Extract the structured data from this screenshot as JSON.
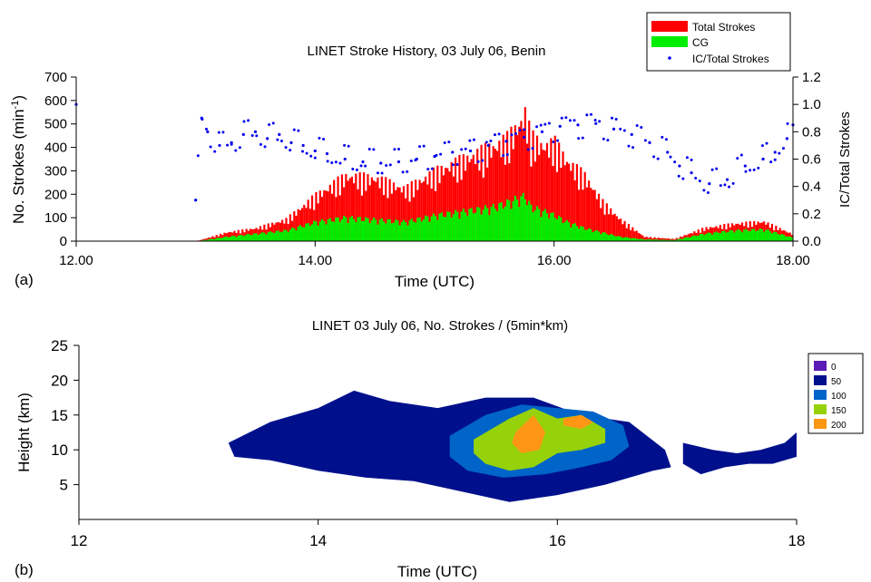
{
  "chart_data": [
    {
      "panel_label": "(a)",
      "type": "bar",
      "title": "LINET Stroke History, 03 July 06, Benin",
      "xlabel": "Time (UTC)",
      "ylabel": "No. Strokes (min",
      "ylabel_sup": "-1",
      "ylabel_end": ")",
      "y2label": "IC/Total Strokes",
      "xlim": [
        12,
        18
      ],
      "ylim": [
        0,
        700
      ],
      "y2lim": [
        0,
        1.2
      ],
      "xticks": [
        "12.00",
        "14.00",
        "16.00",
        "18.00"
      ],
      "xtick_values": [
        12,
        14,
        16,
        18
      ],
      "yticks": [
        "0",
        "100",
        "200",
        "300",
        "400",
        "500",
        "600",
        "700"
      ],
      "yticks_right": [
        "0.0",
        "0.2",
        "0.4",
        "0.6",
        "0.8",
        "1.0",
        "1.2"
      ],
      "legend": {
        "position": "top-right",
        "entries": [
          "Total Strokes",
          "CG",
          "IC/Total Strokes"
        ]
      },
      "colors": {
        "total": "#ff0000",
        "cg": "#00ee00",
        "ratio": "#0000ee"
      },
      "series": [
        {
          "name": "Total Strokes",
          "x": [
            13.0,
            13.25,
            13.5,
            13.75,
            14.0,
            14.25,
            14.5,
            14.75,
            15.0,
            15.25,
            15.5,
            15.6,
            15.7,
            15.75,
            15.8,
            15.9,
            16.0,
            16.1,
            16.25,
            16.4,
            16.55,
            16.75,
            17.0,
            17.25,
            17.5,
            17.75,
            18.0
          ],
          "values": [
            0,
            40,
            60,
            100,
            210,
            300,
            290,
            240,
            320,
            380,
            440,
            470,
            540,
            590,
            480,
            440,
            450,
            370,
            300,
            180,
            100,
            20,
            10,
            60,
            80,
            90,
            30
          ]
        },
        {
          "name": "CG",
          "x": [
            13.0,
            13.25,
            13.5,
            13.75,
            14.0,
            14.25,
            14.5,
            14.75,
            15.0,
            15.25,
            15.5,
            15.6,
            15.7,
            15.75,
            15.8,
            15.9,
            16.0,
            16.1,
            16.25,
            16.4,
            16.55,
            16.75,
            17.0,
            17.25,
            17.5,
            17.75,
            18.0
          ],
          "values": [
            0,
            20,
            35,
            50,
            90,
            110,
            100,
            90,
            120,
            140,
            160,
            180,
            200,
            210,
            160,
            140,
            120,
            90,
            60,
            40,
            20,
            8,
            5,
            35,
            50,
            55,
            15
          ]
        },
        {
          "name": "IC/Total Strokes",
          "axis": "right",
          "x": [
            12.0,
            13.0,
            13.05,
            13.1,
            13.2,
            13.3,
            13.4,
            13.5,
            13.6,
            13.7,
            13.8,
            13.9,
            14.0,
            14.1,
            14.25,
            14.4,
            14.55,
            14.7,
            14.85,
            15.0,
            15.15,
            15.3,
            15.45,
            15.6,
            15.75,
            15.9,
            16.05,
            16.2,
            16.35,
            16.5,
            16.65,
            16.8,
            16.95,
            17.05,
            17.15,
            17.3,
            17.45,
            17.6,
            17.75,
            17.85,
            17.95,
            18.0
          ],
          "values": [
            1.0,
            0.3,
            0.9,
            0.8,
            0.7,
            0.72,
            0.78,
            0.8,
            0.75,
            0.78,
            0.72,
            0.7,
            0.66,
            0.64,
            0.6,
            0.58,
            0.57,
            0.58,
            0.6,
            0.62,
            0.65,
            0.66,
            0.7,
            0.73,
            0.76,
            0.8,
            0.84,
            0.85,
            0.86,
            0.82,
            0.78,
            0.72,
            0.65,
            0.55,
            0.5,
            0.42,
            0.45,
            0.55,
            0.6,
            0.65,
            0.75,
            0.85
          ]
        }
      ]
    },
    {
      "panel_label": "(b)",
      "type": "heatmap",
      "title": "LINET 03 July 06, No. Strokes / (5min*km)",
      "xlabel": "Time (UTC)",
      "ylabel": "Height (km)",
      "xlim": [
        12,
        18
      ],
      "ylim": [
        0,
        25
      ],
      "xticks": [
        "12",
        "14",
        "16",
        "18"
      ],
      "xtick_values": [
        12,
        14,
        16,
        18
      ],
      "yticks": [
        "5",
        "10",
        "15",
        "20",
        "25"
      ],
      "ytick_values": [
        5,
        10,
        15,
        20,
        25
      ],
      "legend": {
        "position": "right",
        "levels": [
          "0",
          "50",
          "100",
          "150",
          "200"
        ],
        "colors": [
          "#5a1cb4",
          "#00108c",
          "#0064c8",
          "#96d20a",
          "#ff9614"
        ]
      },
      "regions": [
        {
          "level": "50",
          "x": [
            13.25,
            13.6,
            14.0,
            14.3,
            14.6,
            15.0,
            15.4,
            15.8,
            16.2,
            16.6,
            16.9,
            16.95,
            16.8,
            16.4,
            16.0,
            15.6,
            15.2,
            14.8,
            14.4,
            14.0,
            13.6,
            13.3
          ],
          "y": [
            11.0,
            14.0,
            16.0,
            18.5,
            17.0,
            16.0,
            17.5,
            17.5,
            15.0,
            14.0,
            10.0,
            7.5,
            7.0,
            5.0,
            3.5,
            2.5,
            4.0,
            5.5,
            6.0,
            7.0,
            8.5,
            9.0
          ]
        },
        {
          "level": "50",
          "x": [
            17.05,
            17.3,
            17.5,
            17.7,
            17.9,
            18.0,
            18.0,
            17.8,
            17.6,
            17.4,
            17.2,
            17.05
          ],
          "y": [
            11.0,
            10.0,
            9.5,
            10.0,
            11.0,
            12.5,
            9.0,
            8.0,
            8.0,
            7.5,
            6.5,
            8.0
          ]
        },
        {
          "level": "100",
          "x": [
            15.1,
            15.4,
            15.7,
            16.0,
            16.3,
            16.55,
            16.6,
            16.45,
            16.2,
            15.9,
            15.55,
            15.25,
            15.1
          ],
          "y": [
            12.0,
            15.0,
            16.5,
            16.0,
            15.5,
            13.5,
            10.5,
            8.5,
            7.5,
            6.5,
            6.0,
            7.0,
            9.0
          ]
        },
        {
          "level": "150",
          "x": [
            15.3,
            15.6,
            15.8,
            16.0,
            16.2,
            16.4,
            16.4,
            16.2,
            16.0,
            15.8,
            15.6,
            15.4,
            15.3
          ],
          "y": [
            11.5,
            14.5,
            16.0,
            14.5,
            15.0,
            13.0,
            11.0,
            10.0,
            9.5,
            7.5,
            7.0,
            8.0,
            9.5
          ]
        },
        {
          "level": "200",
          "x": [
            15.65,
            15.8,
            15.9,
            15.85,
            15.7,
            15.62
          ],
          "y": [
            12.5,
            15.0,
            12.5,
            10.0,
            9.5,
            11.0
          ]
        },
        {
          "level": "200",
          "x": [
            16.05,
            16.2,
            16.3,
            16.2,
            16.05
          ],
          "y": [
            14.5,
            15.0,
            14.0,
            13.0,
            13.5
          ]
        }
      ]
    }
  ]
}
